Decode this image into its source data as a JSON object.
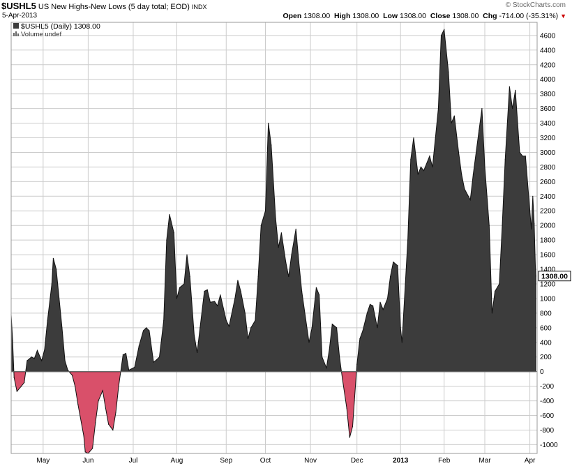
{
  "header": {
    "symbol": "$USHL5",
    "description": "US New Highs-New Lows (5 day total; EOD)",
    "exchange": "INDX",
    "date": "5-Apr-2013",
    "brand": "© StockCharts.com",
    "open_label": "Open",
    "open_value": "1308.00",
    "high_label": "High",
    "high_value": "1308.00",
    "low_label": "Low",
    "low_value": "1308.00",
    "close_label": "Close",
    "close_value": "1308.00",
    "chg_label": "Chg",
    "chg_value": "-714.00 (-35.31%)",
    "down_arrow": "▼"
  },
  "legend": {
    "series_label": "$USHL5 (Daily) 1308.00",
    "volume_label": "Volume undef"
  },
  "colors": {
    "positive_fill": "#3c3c3c",
    "negative_fill": "#d9506a",
    "grid": "#cccccc",
    "background": "#ffffff"
  },
  "chart_data": {
    "type": "area",
    "title": "US New Highs-New Lows (5 day total; EOD)",
    "ylim": [
      -1120,
      4780
    ],
    "y_ticks": [
      -1000,
      -800,
      -600,
      -400,
      -200,
      0,
      200,
      400,
      600,
      800,
      1000,
      1200,
      1400,
      1600,
      1800,
      2000,
      2200,
      2400,
      2600,
      2800,
      3000,
      3200,
      3400,
      3600,
      3800,
      4000,
      4200,
      4400,
      4600
    ],
    "y_tick_labels": [
      "-1000",
      "-800",
      "-600",
      "-400",
      "-200",
      "0",
      "200",
      "400",
      "600",
      "800",
      "1000",
      "1200",
      "1400",
      "1600",
      "1800",
      "2000",
      "2200",
      "2400",
      "2600",
      "2800",
      "3000",
      "3200",
      "3400",
      "3600",
      "3800",
      "4000",
      "4200",
      "4400",
      "4600"
    ],
    "grid": true,
    "last_value_label": "1308.00",
    "last_value": 1308,
    "x_labels": [
      {
        "label": "May",
        "date": "2012-05-01"
      },
      {
        "label": "Jun",
        "date": "2012-06-01"
      },
      {
        "label": "Jul",
        "date": "2012-07-02"
      },
      {
        "label": "Aug",
        "date": "2012-08-01"
      },
      {
        "label": "Sep",
        "date": "2012-09-04"
      },
      {
        "label": "Oct",
        "date": "2012-10-01"
      },
      {
        "label": "Nov",
        "date": "2012-11-01"
      },
      {
        "label": "Dec",
        "date": "2012-12-03"
      },
      {
        "label": "2013",
        "date": "2013-01-02",
        "bold": true
      },
      {
        "label": "Feb",
        "date": "2013-02-01"
      },
      {
        "label": "Mar",
        "date": "2013-03-01"
      },
      {
        "label": "Apr",
        "date": "2013-04-01"
      }
    ],
    "x_range": [
      "2012-04-09",
      "2013-04-06"
    ],
    "series": [
      {
        "points": [
          [
            "2012-04-09",
            780
          ],
          [
            "2012-04-10",
            420
          ],
          [
            "2012-04-11",
            -80
          ],
          [
            "2012-04-13",
            -270
          ],
          [
            "2012-04-16",
            -200
          ],
          [
            "2012-04-18",
            -150
          ],
          [
            "2012-04-20",
            150
          ],
          [
            "2012-04-23",
            200
          ],
          [
            "2012-04-25",
            180
          ],
          [
            "2012-04-27",
            290
          ],
          [
            "2012-04-30",
            150
          ],
          [
            "2012-05-02",
            300
          ],
          [
            "2012-05-04",
            700
          ],
          [
            "2012-05-07",
            1200
          ],
          [
            "2012-05-08",
            1550
          ],
          [
            "2012-05-10",
            1400
          ],
          [
            "2012-05-14",
            600
          ],
          [
            "2012-05-16",
            150
          ],
          [
            "2012-05-18",
            20
          ],
          [
            "2012-05-21",
            -50
          ],
          [
            "2012-05-23",
            -200
          ],
          [
            "2012-05-25",
            -450
          ],
          [
            "2012-05-29",
            -880
          ],
          [
            "2012-05-30",
            -1100
          ],
          [
            "2012-06-01",
            -1120
          ],
          [
            "2012-06-04",
            -1050
          ],
          [
            "2012-06-06",
            -700
          ],
          [
            "2012-06-08",
            -400
          ],
          [
            "2012-06-11",
            -260
          ],
          [
            "2012-06-13",
            -500
          ],
          [
            "2012-06-15",
            -720
          ],
          [
            "2012-06-18",
            -800
          ],
          [
            "2012-06-20",
            -560
          ],
          [
            "2012-06-22",
            -200
          ],
          [
            "2012-06-25",
            230
          ],
          [
            "2012-06-27",
            250
          ],
          [
            "2012-06-29",
            20
          ],
          [
            "2012-07-03",
            60
          ],
          [
            "2012-07-06",
            350
          ],
          [
            "2012-07-09",
            560
          ],
          [
            "2012-07-11",
            600
          ],
          [
            "2012-07-13",
            560
          ],
          [
            "2012-07-16",
            130
          ],
          [
            "2012-07-18",
            160
          ],
          [
            "2012-07-20",
            200
          ],
          [
            "2012-07-23",
            700
          ],
          [
            "2012-07-25",
            1800
          ],
          [
            "2012-07-27",
            2150
          ],
          [
            "2012-07-30",
            1900
          ],
          [
            "2012-08-01",
            1000
          ],
          [
            "2012-08-03",
            1150
          ],
          [
            "2012-08-06",
            1200
          ],
          [
            "2012-08-08",
            1600
          ],
          [
            "2012-08-10",
            1300
          ],
          [
            "2012-08-13",
            500
          ],
          [
            "2012-08-15",
            260
          ],
          [
            "2012-08-17",
            600
          ],
          [
            "2012-08-20",
            1100
          ],
          [
            "2012-08-22",
            1120
          ],
          [
            "2012-08-24",
            950
          ],
          [
            "2012-08-27",
            960
          ],
          [
            "2012-08-29",
            900
          ],
          [
            "2012-08-31",
            1050
          ],
          [
            "2012-09-04",
            700
          ],
          [
            "2012-09-06",
            620
          ],
          [
            "2012-09-10",
            1000
          ],
          [
            "2012-09-12",
            1250
          ],
          [
            "2012-09-14",
            1100
          ],
          [
            "2012-09-17",
            800
          ],
          [
            "2012-09-19",
            450
          ],
          [
            "2012-09-21",
            600
          ],
          [
            "2012-09-24",
            700
          ],
          [
            "2012-09-26",
            1300
          ],
          [
            "2012-09-28",
            2000
          ],
          [
            "2012-10-01",
            2200
          ],
          [
            "2012-10-03",
            3400
          ],
          [
            "2012-10-05",
            3100
          ],
          [
            "2012-10-08",
            2100
          ],
          [
            "2012-10-10",
            1700
          ],
          [
            "2012-10-12",
            1900
          ],
          [
            "2012-10-15",
            1500
          ],
          [
            "2012-10-17",
            1300
          ],
          [
            "2012-10-19",
            1600
          ],
          [
            "2012-10-22",
            1950
          ],
          [
            "2012-10-24",
            1500
          ],
          [
            "2012-10-26",
            1100
          ],
          [
            "2012-10-31",
            400
          ],
          [
            "2012-11-02",
            600
          ],
          [
            "2012-11-05",
            1150
          ],
          [
            "2012-11-07",
            1050
          ],
          [
            "2012-11-09",
            200
          ],
          [
            "2012-11-12",
            50
          ],
          [
            "2012-11-14",
            300
          ],
          [
            "2012-11-16",
            650
          ],
          [
            "2012-11-19",
            600
          ],
          [
            "2012-11-21",
            200
          ],
          [
            "2012-11-23",
            -100
          ],
          [
            "2012-11-26",
            -500
          ],
          [
            "2012-11-28",
            -900
          ],
          [
            "2012-11-30",
            -750
          ],
          [
            "2012-12-03",
            100
          ],
          [
            "2012-12-05",
            450
          ],
          [
            "2012-12-07",
            560
          ],
          [
            "2012-12-10",
            800
          ],
          [
            "2012-12-12",
            920
          ],
          [
            "2012-12-14",
            900
          ],
          [
            "2012-12-17",
            600
          ],
          [
            "2012-12-19",
            950
          ],
          [
            "2012-12-21",
            850
          ],
          [
            "2012-12-24",
            1000
          ],
          [
            "2012-12-26",
            1300
          ],
          [
            "2012-12-28",
            1500
          ],
          [
            "2012-12-31",
            1450
          ],
          [
            "2013-01-02",
            600
          ],
          [
            "2013-01-03",
            400
          ],
          [
            "2013-01-07",
            1800
          ],
          [
            "2013-01-09",
            2900
          ],
          [
            "2013-01-11",
            3200
          ],
          [
            "2013-01-14",
            2700
          ],
          [
            "2013-01-16",
            2800
          ],
          [
            "2013-01-18",
            2750
          ],
          [
            "2013-01-22",
            2950
          ],
          [
            "2013-01-24",
            2800
          ],
          [
            "2013-01-28",
            3600
          ],
          [
            "2013-01-30",
            4600
          ],
          [
            "2013-02-01",
            4680
          ],
          [
            "2013-02-04",
            4100
          ],
          [
            "2013-02-06",
            3400
          ],
          [
            "2013-02-08",
            3500
          ],
          [
            "2013-02-11",
            3000
          ],
          [
            "2013-02-13",
            2700
          ],
          [
            "2013-02-15",
            2500
          ],
          [
            "2013-02-19",
            2350
          ],
          [
            "2013-02-21",
            2700
          ],
          [
            "2013-02-25",
            3300
          ],
          [
            "2013-02-27",
            3600
          ],
          [
            "2013-03-01",
            2800
          ],
          [
            "2013-03-04",
            2000
          ],
          [
            "2013-03-06",
            800
          ],
          [
            "2013-03-08",
            1100
          ],
          [
            "2013-03-11",
            1200
          ],
          [
            "2013-03-13",
            2000
          ],
          [
            "2013-03-15",
            2900
          ],
          [
            "2013-03-18",
            3900
          ],
          [
            "2013-03-20",
            3600
          ],
          [
            "2013-03-22",
            3850
          ],
          [
            "2013-03-25",
            3000
          ],
          [
            "2013-03-27",
            2950
          ],
          [
            "2013-03-29",
            2950
          ],
          [
            "2013-04-01",
            2200
          ],
          [
            "2013-04-02",
            1950
          ],
          [
            "2013-04-03",
            2400
          ],
          [
            "2013-04-04",
            2022
          ],
          [
            "2013-04-05",
            1308
          ]
        ]
      }
    ]
  }
}
